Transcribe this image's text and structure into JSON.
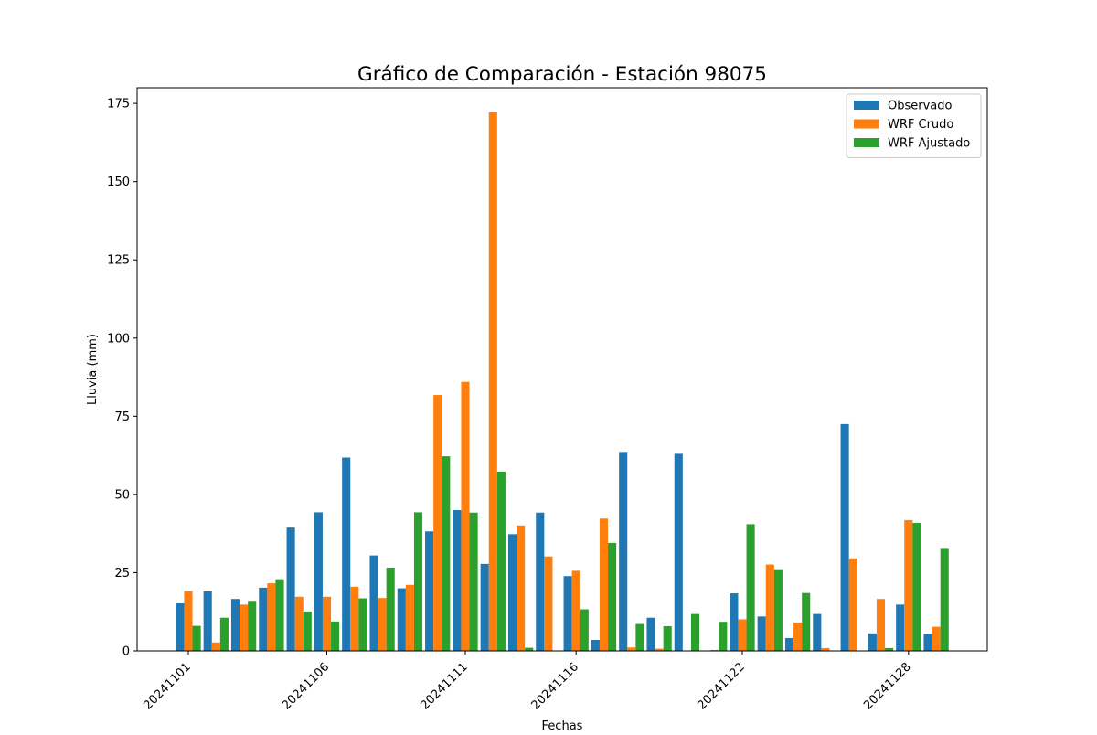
{
  "chart_data": {
    "type": "bar",
    "title": "Gráfico de Comparación - Estación 98075",
    "xlabel": "Fechas",
    "ylabel": "Lluvia (mm)",
    "ylim": [
      0,
      180
    ],
    "yticks": [
      0,
      25,
      50,
      75,
      100,
      125,
      150,
      175
    ],
    "grid": false,
    "legend_position": "top-right",
    "categories": [
      "20241101",
      "20241102",
      "20241103",
      "20241104",
      "20241105",
      "20241106",
      "20241107",
      "20241108",
      "20241109",
      "20241110",
      "20241111",
      "20241112",
      "20241113",
      "20241114",
      "20241116",
      "20241117",
      "20241118",
      "20241119",
      "20241120",
      "20241121",
      "20241122",
      "20241123",
      "20241124",
      "20241125",
      "20241126",
      "20241127",
      "20241128",
      "20241129",
      "20241130"
    ],
    "xtick_labels": [
      "20241101",
      "20241106",
      "20241111",
      "20241116",
      "20241122",
      "20241128"
    ],
    "series": [
      {
        "name": "Observado",
        "color": "#1f77b4",
        "values": [
          15.2,
          19.0,
          16.6,
          20.2,
          39.4,
          44.3,
          61.8,
          30.5,
          20.0,
          38.2,
          45.0,
          27.8,
          37.3,
          44.2,
          23.9,
          3.5,
          63.6,
          10.6,
          63.0,
          0,
          18.4,
          11.0,
          4.1,
          11.8,
          72.5,
          5.6,
          14.8,
          5.4,
          0
        ]
      },
      {
        "name": "WRF Crudo",
        "color": "#ff7f0e",
        "values": [
          19.1,
          2.7,
          14.8,
          21.6,
          17.3,
          17.3,
          20.5,
          16.9,
          21.1,
          81.8,
          86.0,
          172.2,
          40.1,
          30.2,
          25.6,
          42.3,
          1.1,
          0.7,
          0,
          0.3,
          10.1,
          27.6,
          9.1,
          0.9,
          29.6,
          16.6,
          41.8,
          7.7,
          0
        ]
      },
      {
        "name": "WRF Ajustado",
        "color": "#2ca02c",
        "values": [
          8.0,
          10.6,
          16.0,
          22.9,
          12.6,
          9.4,
          16.8,
          26.6,
          44.3,
          62.2,
          44.2,
          57.3,
          1.0,
          0,
          13.3,
          34.5,
          8.6,
          7.9,
          11.8,
          9.3,
          40.5,
          26.1,
          18.5,
          0,
          0,
          0.9,
          40.9,
          32.9,
          0
        ]
      }
    ]
  }
}
